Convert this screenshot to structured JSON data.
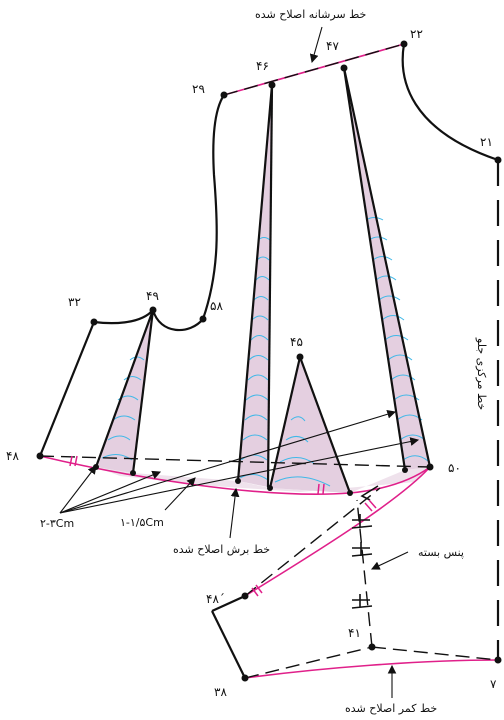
{
  "diagram": {
    "point_labels": {
      "p22": "۲۲",
      "p47": "۴۷",
      "p46": "۴۶",
      "p29": "۲۹",
      "p21": "۲۱",
      "p32": "۳۲",
      "p49": "۴۹",
      "p58": "۵۸",
      "p45": "۴۵",
      "p48": "۴۸",
      "p50": "۵۰",
      "p48p": "۴۸´",
      "p41": "۴۱",
      "p38": "۳۸",
      "p7": "۷"
    },
    "annotations": {
      "shoulder_line": "خط سرشانه اصلاح شده",
      "center_front": "خط مرکزی جلو",
      "dart_width": "۲-۳Cm",
      "cut_offset": "۱-۱/۵Cm",
      "cut_line": "خط برش اصلاح شده",
      "closed_dart": "پنس بسته",
      "waist_line": "خط کمر اصلاح شده"
    },
    "colors": {
      "outline": "#111111",
      "corrected": "#e0208a",
      "dart_fill": "#e4cfe0",
      "contour": "#3fb8e8"
    }
  }
}
